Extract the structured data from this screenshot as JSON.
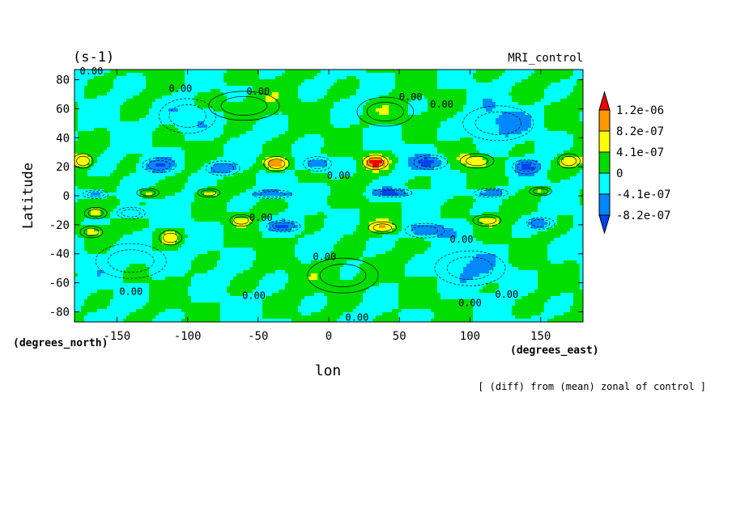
{
  "chart_data": {
    "type": "heatmap",
    "title": "MRI_control",
    "units": "(s-1)",
    "xlabel": "lon",
    "ylabel": "Latitude",
    "x_units": "(degrees_east)",
    "y_units": "(degrees_north)",
    "caption": "[ (diff) from (mean) zonal of control ]",
    "xlim": [
      -180,
      180
    ],
    "ylim": [
      -87,
      87
    ],
    "xticks": [
      "-150",
      "-100",
      "-50",
      "0",
      "50",
      "100",
      "150"
    ],
    "xtick_values": [
      -150,
      -100,
      -50,
      0,
      50,
      100,
      150
    ],
    "yticks": [
      "80",
      "60",
      "40",
      "20",
      "0",
      "-20",
      "-40",
      "-60",
      "-80"
    ],
    "ytick_values": [
      80,
      60,
      40,
      20,
      0,
      -20,
      -40,
      -60,
      -80
    ],
    "contour_labels": [
      {
        "text": "0.00",
        "lon": -168,
        "lat": 86
      },
      {
        "text": "0.00",
        "lon": -105,
        "lat": 74
      },
      {
        "text": "0.00",
        "lon": -50,
        "lat": 72
      },
      {
        "text": "0.00",
        "lon": 58,
        "lat": 68
      },
      {
        "text": "0.00",
        "lon": 80,
        "lat": 63
      },
      {
        "text": "0.00",
        "lon": 7,
        "lat": 14
      },
      {
        "text": "0.00",
        "lon": -48,
        "lat": -15
      },
      {
        "text": "0.00",
        "lon": 94,
        "lat": -30
      },
      {
        "text": "0.00",
        "lon": -3,
        "lat": -42
      },
      {
        "text": "0.00",
        "lon": -140,
        "lat": -66
      },
      {
        "text": "0.00",
        "lon": -53,
        "lat": -69
      },
      {
        "text": "0.00",
        "lon": 126,
        "lat": -68
      },
      {
        "text": "0.00",
        "lon": 100,
        "lat": -74
      },
      {
        "text": "0.00",
        "lon": 20,
        "lat": -84
      }
    ],
    "legend": {
      "placement": "right",
      "labels": [
        "1.2e-06",
        "8.2e-07",
        "4.1e-07",
        "0",
        "-4.1e-07",
        "-8.2e-07"
      ],
      "levels": [
        1.2e-06,
        8.2e-07,
        4.1e-07,
        0,
        -4.1e-07,
        -8.2e-07
      ],
      "colors": [
        "#ff0000",
        "#ff9900",
        "#ffff00",
        "#00dd00",
        "#00ffff",
        "#0088ff"
      ],
      "colors_full": [
        "#ee0000",
        "#ff9900",
        "#ffff00",
        "#00dd00",
        "#00ffff",
        "#0088ff",
        "#0044ee"
      ]
    },
    "features": [
      {
        "lon": -37,
        "lat": 22,
        "amp": 1.35e-06,
        "wlon": 9,
        "wlat": 5
      },
      {
        "lon": 33,
        "lat": 23,
        "amp": 1.3e-06,
        "wlon": 9,
        "wlat": 5
      },
      {
        "lon": -174,
        "lat": 24,
        "amp": 7e-07,
        "wlon": 7,
        "wlat": 5
      },
      {
        "lon": 105,
        "lat": 24,
        "amp": 6.5e-07,
        "wlon": 12,
        "wlat": 5
      },
      {
        "lon": 170,
        "lat": 24,
        "amp": 6e-07,
        "wlon": 8,
        "wlat": 5
      },
      {
        "lon": -128,
        "lat": 2,
        "amp": 6e-07,
        "wlon": 8,
        "wlat": 3
      },
      {
        "lon": -85,
        "lat": 2,
        "amp": 5e-07,
        "wlon": 8,
        "wlat": 3
      },
      {
        "lon": -165,
        "lat": -12,
        "amp": 6e-07,
        "wlon": 8,
        "wlat": 4
      },
      {
        "lon": -168,
        "lat": -25,
        "amp": 6.5e-07,
        "wlon": 8,
        "wlat": 4
      },
      {
        "lon": -112,
        "lat": -29,
        "amp": 6e-07,
        "wlon": 8,
        "wlat": 5
      },
      {
        "lon": -62,
        "lat": -17,
        "amp": 5e-07,
        "wlon": 8,
        "wlat": 4
      },
      {
        "lon": 38,
        "lat": -22,
        "amp": 7e-07,
        "wlon": 10,
        "wlat": 4
      },
      {
        "lon": 112,
        "lat": -17,
        "amp": 5e-07,
        "wlon": 10,
        "wlat": 4
      },
      {
        "lon": 150,
        "lat": 3,
        "amp": 4.5e-07,
        "wlon": 8,
        "wlat": 3
      },
      {
        "lon": -120,
        "lat": 21,
        "amp": -6.5e-07,
        "wlon": 12,
        "wlat": 5
      },
      {
        "lon": -75,
        "lat": 19,
        "amp": -8.5e-07,
        "wlon": 12,
        "wlat": 5
      },
      {
        "lon": -8,
        "lat": 22,
        "amp": -9e-07,
        "wlon": 10,
        "wlat": 5
      },
      {
        "lon": 72,
        "lat": 23,
        "amp": -8.5e-07,
        "wlon": 12,
        "wlat": 5
      },
      {
        "lon": 140,
        "lat": 20,
        "amp": -7.5e-07,
        "wlon": 10,
        "wlat": 5
      },
      {
        "lon": -165,
        "lat": 1,
        "amp": -9e-07,
        "wlon": 9,
        "wlat": 3
      },
      {
        "lon": -40,
        "lat": 1,
        "amp": -9e-07,
        "wlon": 14,
        "wlat": 3
      },
      {
        "lon": 45,
        "lat": 2,
        "amp": -9.5e-07,
        "wlon": 14,
        "wlat": 3
      },
      {
        "lon": 115,
        "lat": 2,
        "amp": -8e-07,
        "wlon": 12,
        "wlat": 3
      },
      {
        "lon": -140,
        "lat": -12,
        "amp": -6.5e-07,
        "wlon": 10,
        "wlat": 4
      },
      {
        "lon": -32,
        "lat": -21,
        "amp": -7.5e-07,
        "wlon": 12,
        "wlat": 4
      },
      {
        "lon": 68,
        "lat": -24,
        "amp": -8.5e-07,
        "wlon": 14,
        "wlat": 5
      },
      {
        "lon": 150,
        "lat": -19,
        "amp": -6.5e-07,
        "wlon": 10,
        "wlat": 4
      },
      {
        "lon": -100,
        "lat": 55,
        "amp": -5e-07,
        "wlon": 20,
        "wlat": 12
      },
      {
        "lon": 120,
        "lat": 50,
        "amp": -5e-07,
        "wlon": 25,
        "wlat": 12
      },
      {
        "lon": -60,
        "lat": 62,
        "amp": 4e-07,
        "wlon": 25,
        "wlat": 10
      },
      {
        "lon": 40,
        "lat": 58,
        "amp": 3e-07,
        "wlon": 20,
        "wlat": 10
      },
      {
        "lon": 10,
        "lat": -55,
        "amp": 3e-07,
        "wlon": 25,
        "wlat": 12
      },
      {
        "lon": 100,
        "lat": -50,
        "amp": -4e-07,
        "wlon": 25,
        "wlat": 12
      },
      {
        "lon": -140,
        "lat": -45,
        "amp": -3e-07,
        "wlon": 25,
        "wlat": 12
      }
    ]
  }
}
